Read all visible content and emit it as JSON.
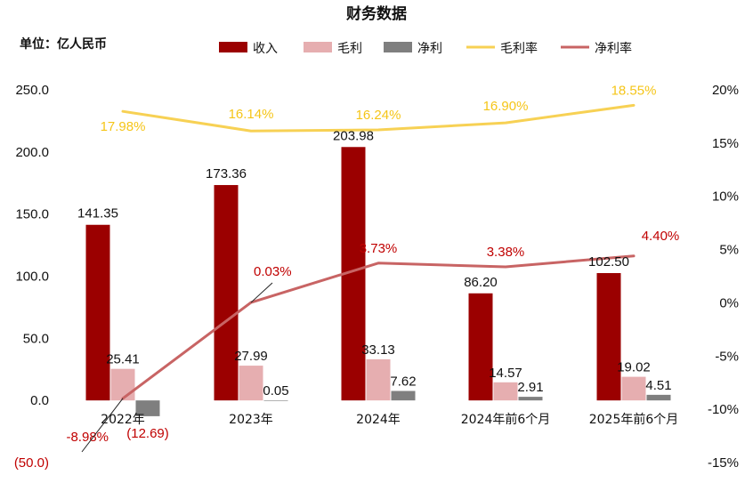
{
  "chart_data": {
    "type": "bar",
    "title": "财务数据",
    "unit_label": "单位：亿人民币",
    "categories": [
      "2022年",
      "2023年",
      "2024年",
      "2024年前6个月",
      "2025年前6个月"
    ],
    "series": [
      {
        "name": "收入",
        "kind": "bar",
        "axis": "left",
        "color": "#9b0000",
        "values": [
          141.35,
          173.36,
          203.98,
          86.2,
          102.5
        ],
        "labels": [
          "141.35",
          "173.36",
          "203.98",
          "86.20",
          "102.50"
        ]
      },
      {
        "name": "毛利",
        "kind": "bar",
        "axis": "left",
        "color": "#e6aeb0",
        "values": [
          25.41,
          27.99,
          33.13,
          14.57,
          19.02
        ],
        "labels": [
          "25.41",
          "27.99",
          "33.13",
          "14.57",
          "19.02"
        ]
      },
      {
        "name": "净利",
        "kind": "bar",
        "axis": "left",
        "color": "#7f7f7f",
        "values": [
          -12.69,
          0.05,
          7.62,
          2.91,
          4.51
        ],
        "labels": [
          "(12.69)",
          "0.05",
          "7.62",
          "2.91",
          "4.51"
        ]
      },
      {
        "name": "毛利率",
        "kind": "line",
        "axis": "right",
        "color": "#f7d154",
        "values": [
          17.98,
          16.14,
          16.24,
          16.9,
          18.55
        ],
        "labels": [
          "17.98%",
          "16.14%",
          "16.24%",
          "16.90%",
          "18.55%"
        ]
      },
      {
        "name": "净利率",
        "kind": "line",
        "axis": "right",
        "color": "#c86464",
        "values": [
          -8.98,
          0.03,
          3.73,
          3.38,
          4.4
        ],
        "labels": [
          "-8.98%",
          "0.03%",
          "3.73%",
          "3.38%",
          "4.40%"
        ]
      }
    ],
    "y_left": {
      "min": -50,
      "max": 250,
      "ticks": [
        -50,
        0,
        50,
        100,
        150,
        200,
        250
      ],
      "tick_labels": [
        "(50.0)",
        "0.0",
        "50.0",
        "100.0",
        "150.0",
        "200.0",
        "250.0"
      ]
    },
    "y_right": {
      "min": -15,
      "max": 20,
      "ticks": [
        -15,
        -10,
        -5,
        0,
        5,
        10,
        15,
        20
      ],
      "tick_labels": [
        "-15%",
        "-10%",
        "-5%",
        "0%",
        "5%",
        "10%",
        "15%",
        "20%"
      ]
    },
    "grid": false,
    "legend_position": "top"
  }
}
